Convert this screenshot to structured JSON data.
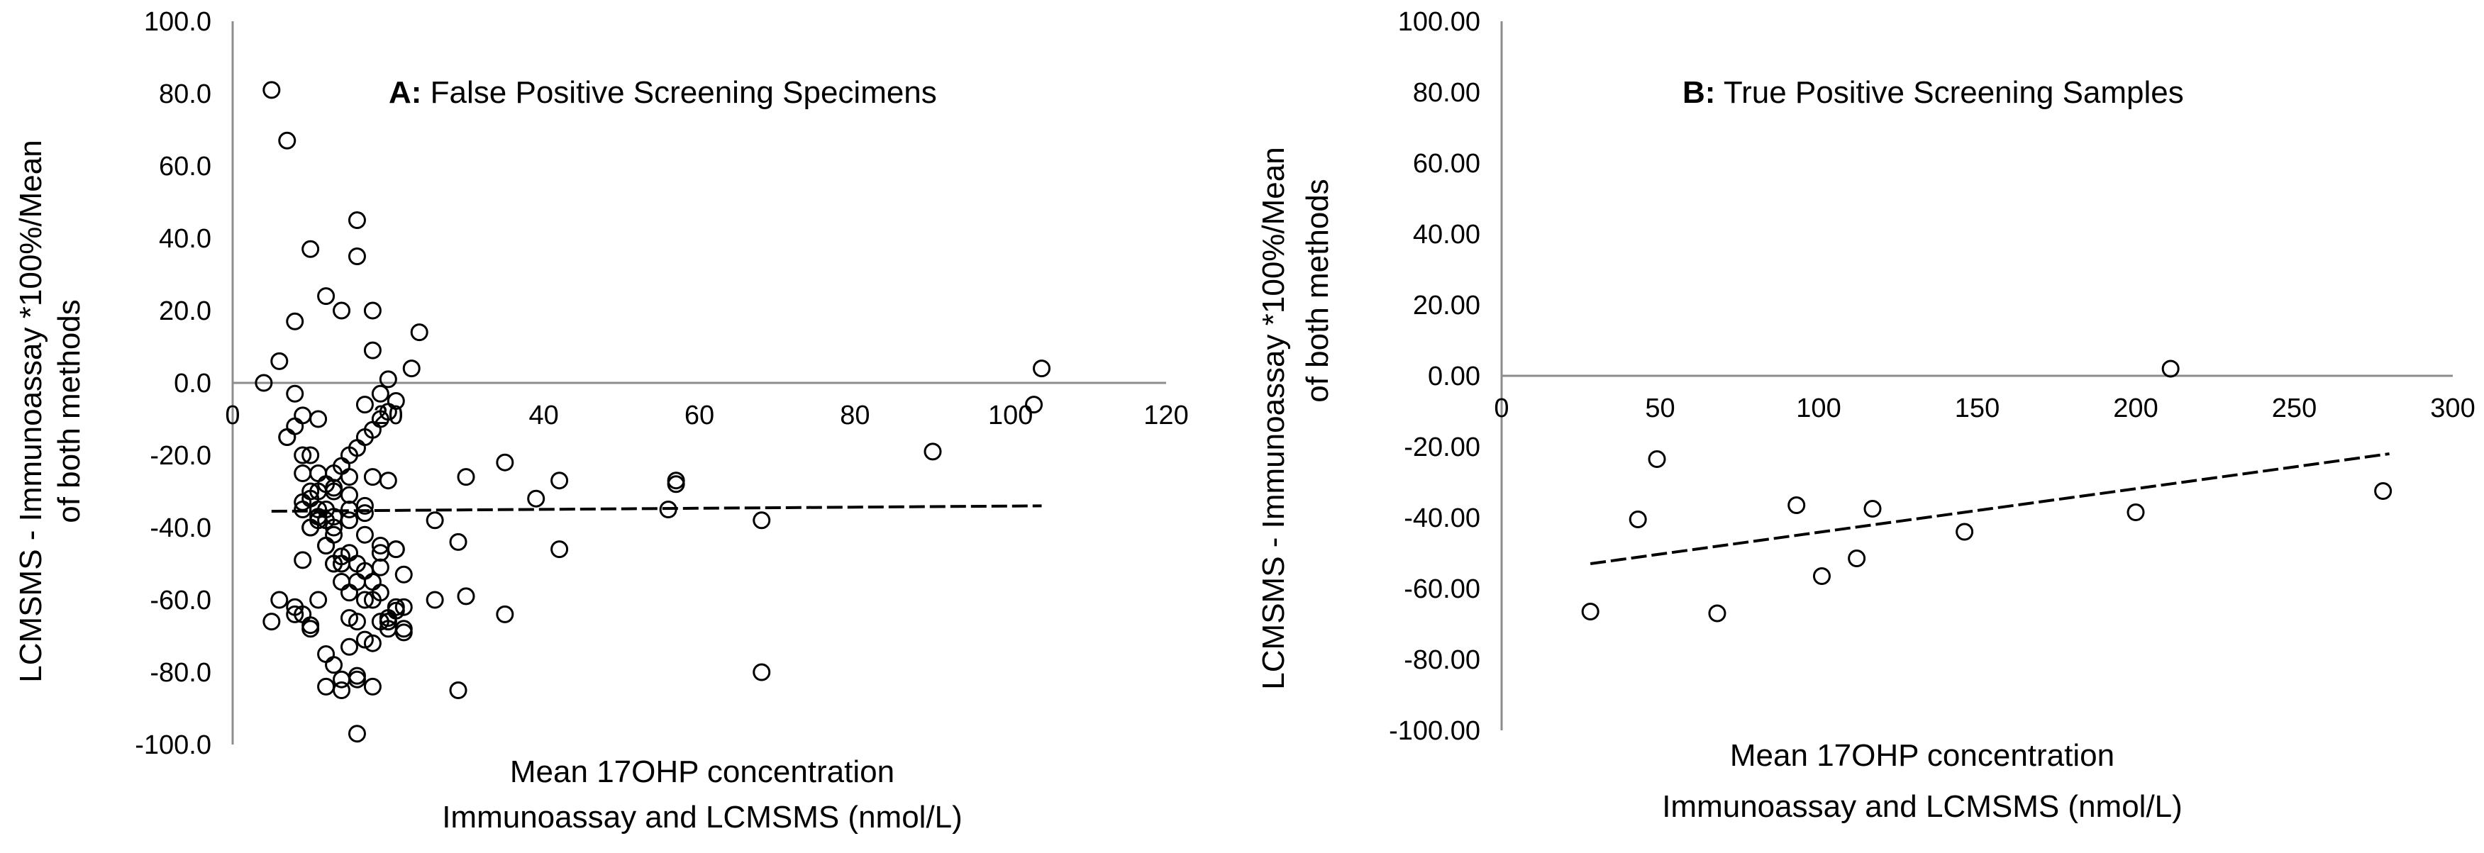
{
  "chart_data": [
    {
      "type": "scatter",
      "panel": "A",
      "title_bold": "A:",
      "title_rest": " False Positive Screening Specimens",
      "ylabel_line1": "LCMSMS - Immunoassay *100%/Mean",
      "ylabel_line2": "of both methods",
      "xlabel_line1": "Mean 17OHP concentration",
      "xlabel_line2": "Immunoassay and LCMSMS  (nmol/L)",
      "xlim": [
        0,
        120
      ],
      "ylim": [
        -100,
        100
      ],
      "x_ticks": [
        0,
        20,
        40,
        60,
        80,
        100,
        120
      ],
      "x_tick_labels": [
        "0",
        "20",
        "40",
        "60",
        "80",
        "100",
        "120"
      ],
      "y_ticks": [
        100,
        80,
        60,
        40,
        20,
        0,
        -20,
        -40,
        -60,
        -80,
        -100
      ],
      "y_tick_labels": [
        "100.0",
        "80.0",
        "60.0",
        "40.0",
        "20.0",
        "0.0",
        "-20.0",
        "-40.0",
        "-60.0",
        "-80.0",
        "-100.0"
      ],
      "trendline": {
        "x": [
          5,
          104
        ],
        "y": [
          -35.5,
          -34.0
        ],
        "style": "dashed"
      },
      "points": {
        "x": [
          4,
          5,
          6,
          7,
          8,
          7,
          6,
          5,
          8,
          9,
          10,
          11,
          10,
          12,
          13,
          14,
          15,
          16,
          17,
          15,
          14,
          13,
          12,
          9,
          8,
          7,
          9,
          10,
          11,
          12,
          14,
          16,
          18,
          19,
          17,
          15,
          13,
          11,
          9,
          8,
          10,
          12,
          14,
          16,
          18,
          20,
          21,
          19,
          17,
          15,
          13,
          11,
          9,
          10,
          12,
          14,
          16,
          18,
          20,
          22,
          21,
          19,
          17,
          15,
          13,
          11,
          10,
          12,
          14,
          16,
          18,
          20,
          19,
          17,
          15,
          13,
          11,
          9,
          8,
          10,
          12,
          14,
          16,
          18,
          20,
          22,
          21,
          19,
          17,
          15,
          13,
          16,
          18,
          20,
          16,
          18,
          20,
          22,
          21,
          19,
          17,
          15,
          13,
          11,
          9,
          10,
          12,
          14,
          16,
          18,
          20,
          22,
          21,
          19,
          17,
          15,
          13,
          24,
          23,
          26,
          26,
          29,
          29,
          30,
          30,
          35,
          35,
          39,
          42,
          42,
          56,
          57,
          57,
          68,
          68,
          90,
          103,
          104
        ],
        "y": [
          0,
          81,
          6,
          67,
          17,
          -15,
          -60,
          -66,
          -62,
          -25,
          -20,
          -10,
          -40,
          -45,
          -50,
          -55,
          -65,
          -66,
          -60,
          -58,
          -50,
          -40,
          -35,
          -9,
          -3,
          -15,
          -20,
          -30,
          -35,
          -38,
          -48,
          -50,
          -55,
          -45,
          -34,
          -35,
          -30,
          -25,
          -33,
          -12,
          37,
          24,
          20,
          35,
          9,
          1,
          -5,
          -10,
          -15,
          -20,
          -25,
          -30,
          -35,
          -40,
          -45,
          -50,
          -55,
          -60,
          -65,
          -68,
          -62,
          -58,
          -52,
          -47,
          -42,
          -37,
          -32,
          -28,
          -23,
          -18,
          -13,
          -8,
          -3,
          -6,
          -26,
          -37,
          -38,
          -49,
          -64,
          -67,
          -84,
          -82,
          -81,
          -72,
          -66,
          -69,
          -63,
          -66,
          -71,
          -73,
          -78,
          45,
          20,
          -68,
          -97,
          -26,
          -27,
          -53,
          -46,
          -51,
          -42,
          -38,
          -50,
          -60,
          -64,
          -68,
          -75,
          -85,
          -82,
          -84,
          -66,
          -62,
          -46,
          -47,
          -36,
          -31,
          -29,
          14,
          4,
          -38,
          -60,
          -44,
          -85,
          -26,
          -59,
          -22,
          -64,
          -32,
          -27,
          -46,
          -35,
          -27,
          -28,
          -80,
          -38,
          -19,
          -6,
          4
        ]
      }
    },
    {
      "type": "scatter",
      "panel": "B",
      "title_bold": "B:",
      "title_rest": " True Positive Screening Samples",
      "ylabel_line1": "LCMSMS - Immunoassay *100%/Mean",
      "ylabel_line2": "of both methods",
      "xlabel_line1": "Mean 17OHP concentration",
      "xlabel_line2": "Immunoassay and LCMSMS (nmol/L)",
      "xlim": [
        0,
        300
      ],
      "ylim": [
        -100,
        100
      ],
      "x_ticks": [
        0,
        50,
        100,
        150,
        200,
        250,
        300
      ],
      "x_tick_labels": [
        "0",
        "50",
        "100",
        "150",
        "200",
        "250",
        "300"
      ],
      "y_ticks": [
        100,
        80,
        60,
        40,
        20,
        0,
        -20,
        -40,
        -60,
        -80,
        -100
      ],
      "y_tick_labels": [
        "100.00",
        "80.00",
        "60.00",
        "40.00",
        "20.00",
        "0.00",
        "-20.00",
        "-40.00",
        "-60.00",
        "-80.00",
        "-100.00"
      ],
      "trendline": {
        "x": [
          28,
          280
        ],
        "y": [
          -53,
          -22
        ],
        "style": "dashed"
      },
      "points": {
        "x": [
          28,
          43,
          49,
          68,
          93,
          101,
          112,
          117,
          146,
          200,
          211,
          278
        ],
        "y": [
          -66.5,
          -40.5,
          -23.5,
          -67,
          -36.5,
          -56.5,
          -51.5,
          -37.5,
          -44,
          -38.5,
          2,
          -32.5
        ]
      }
    }
  ]
}
